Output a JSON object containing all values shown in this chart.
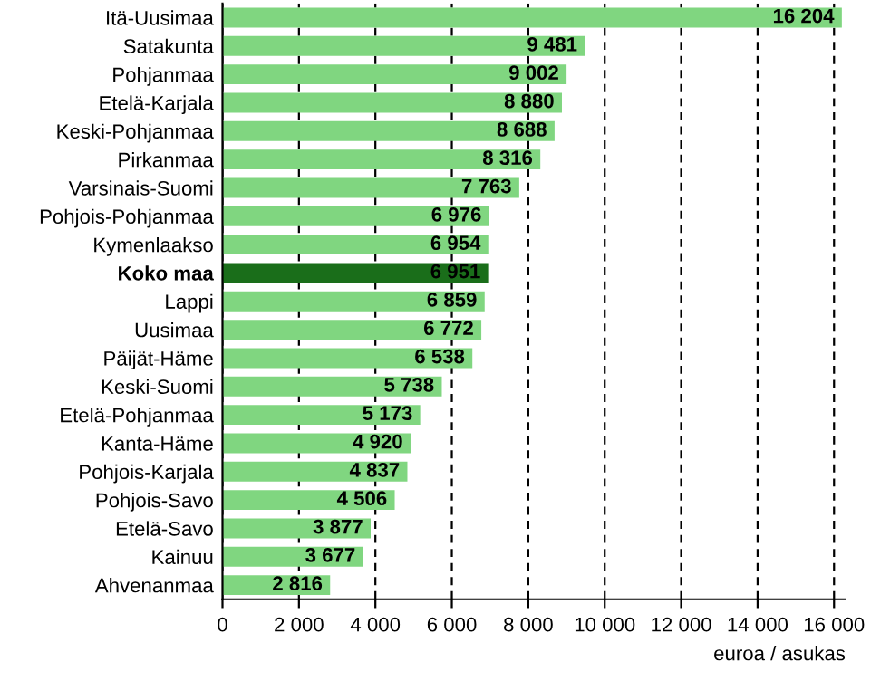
{
  "chart_data": {
    "type": "bar",
    "orientation": "horizontal",
    "categories": [
      "Itä-Uusimaa",
      "Satakunta",
      "Pohjanmaa",
      "Etelä-Karjala",
      "Keski-Pohjanmaa",
      "Pirkanmaa",
      "Varsinais-Suomi",
      "Pohjois-Pohjanmaa",
      "Kymenlaakso",
      "Koko maa",
      "Lappi",
      "Uusimaa",
      "Päijät-Häme",
      "Keski-Suomi",
      "Etelä-Pohjanmaa",
      "Kanta-Häme",
      "Pohjois-Karjala",
      "Pohjois-Savo",
      "Etelä-Savo",
      "Kainuu",
      "Ahvenanmaa"
    ],
    "values": [
      16204,
      9481,
      9002,
      8880,
      8688,
      8316,
      7763,
      6976,
      6954,
      6951,
      6859,
      6772,
      6538,
      5738,
      5173,
      4920,
      4837,
      4506,
      3877,
      3677,
      2816
    ],
    "value_labels": [
      "16 204",
      "9 481",
      "9 002",
      "8 880",
      "8 688",
      "8 316",
      "7 763",
      "6 976",
      "6 954",
      "6 951",
      "6 859",
      "6 772",
      "6 538",
      "5 738",
      "5 173",
      "4 920",
      "4 837",
      "4 506",
      "3 877",
      "3 677",
      "2 816"
    ],
    "colors": [
      "#80d680",
      "#80d680",
      "#80d680",
      "#80d680",
      "#80d680",
      "#80d680",
      "#80d680",
      "#80d680",
      "#80d680",
      "#1a6e1a",
      "#80d680",
      "#80d680",
      "#80d680",
      "#80d680",
      "#80d680",
      "#80d680",
      "#80d680",
      "#80d680",
      "#80d680",
      "#80d680",
      "#80d680"
    ],
    "xlabel": "euroa / asukas",
    "xlim": [
      0,
      16300
    ],
    "xticks": [
      0,
      {
        "value": 2000,
        "label": "2 000"
      },
      {
        "value": 4000,
        "label": "4 000"
      },
      {
        "value": 6000,
        "label": "6 000"
      },
      {
        "value": 8000,
        "label": "8 000"
      },
      {
        "value": 10000,
        "label": "10 000"
      },
      {
        "value": 12000,
        "label": "12 000"
      },
      {
        "value": 14000,
        "label": "14 000"
      },
      {
        "value": 16000,
        "label": "16 000"
      }
    ],
    "grid": "x"
  }
}
